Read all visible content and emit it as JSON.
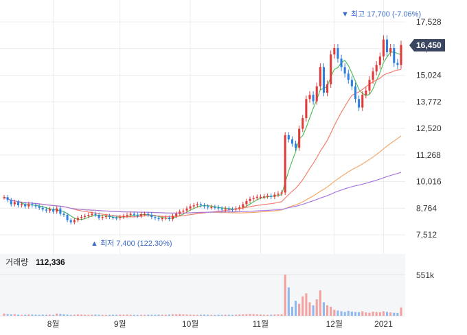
{
  "chart_data": {
    "type": "candlestick",
    "price_axis": {
      "ticks": [
        "17,528",
        "16,276",
        "15,024",
        "13,772",
        "12,520",
        "11,268",
        "10,016",
        "8,764",
        "7,512"
      ],
      "tick_values": [
        17528,
        16276,
        15024,
        13772,
        12520,
        11268,
        10016,
        8764,
        7512
      ]
    },
    "x_ticks": [
      "8월",
      "9월",
      "10월",
      "11월",
      "12월",
      "2021"
    ],
    "current_price": {
      "label": "16,450",
      "value": 16450
    },
    "high_annotation": "▼ 최고 17,700 (-7.06%)",
    "low_annotation": "▲ 최저 7,400 (122.30%)",
    "volume": {
      "label": "거래량",
      "value": "112,336",
      "axis_tick": "551k"
    },
    "colors": {
      "up": "#e03a3a",
      "down": "#2f7fe0",
      "ma5": "#4fbf5a",
      "ma20": "#f27f6f",
      "ma60": "#f5a96a",
      "ma120": "#a779e0",
      "vol_up": "#f2a0a0",
      "vol_down": "#8fb8ef",
      "price_tag": "#3a4660",
      "grid": "#ececec"
    },
    "closes": [
      9280,
      9150,
      8950,
      9050,
      8900,
      8950,
      8850,
      8950,
      8900,
      8850,
      8780,
      8700,
      8650,
      8720,
      8600,
      8750,
      8500,
      8450,
      8200,
      8100,
      8200,
      8300,
      8350,
      8400,
      8450,
      8500,
      8450,
      8300,
      8350,
      8400,
      8350,
      8320,
      8300,
      8350,
      8400,
      8450,
      8500,
      8450,
      8400,
      8480,
      8500,
      8450,
      8350,
      8300,
      8250,
      8300,
      8320,
      8250,
      8400,
      8500,
      8600,
      8650,
      8750,
      8850,
      8900,
      8950,
      8900,
      8850,
      8800,
      8820,
      8800,
      8750,
      8700,
      8750,
      8720,
      8700,
      8750,
      8800,
      8950,
      9100,
      9200,
      9250,
      9300,
      9300,
      9320,
      9350,
      9300,
      9400,
      9450,
      9500,
      12200,
      12000,
      11800,
      11600,
      12500,
      13000,
      13900,
      14100,
      13800,
      14500,
      15400,
      14200,
      14600,
      16000,
      16300,
      15800,
      15400,
      15100,
      14800,
      14500,
      13900,
      13500,
      14100,
      14300,
      14800,
      15200,
      15500,
      15900,
      16700,
      16100,
      16300,
      15600,
      15500,
      16450
    ],
    "volumes": [
      30,
      22,
      18,
      20,
      15,
      12,
      14,
      18,
      16,
      14,
      12,
      15,
      13,
      16,
      12,
      30,
      25,
      20,
      15,
      12,
      14,
      18,
      16,
      13,
      12,
      14,
      15,
      13,
      12,
      11,
      12,
      14,
      13,
      15,
      14,
      16,
      13,
      12,
      11,
      13,
      12,
      14,
      13,
      12,
      15,
      14,
      13,
      16,
      18,
      20,
      22,
      18,
      16,
      14,
      13,
      12,
      14,
      15,
      13,
      12,
      11,
      13,
      12,
      14,
      13,
      12,
      14,
      16,
      18,
      20,
      22,
      20,
      18,
      16,
      14,
      13,
      14,
      16,
      18,
      20,
      551,
      380,
      120,
      200,
      160,
      260,
      300,
      180,
      140,
      220,
      340,
      180,
      140,
      120,
      80,
      70,
      60,
      50,
      65,
      55,
      50,
      48,
      60,
      45,
      40,
      55,
      50,
      48,
      60,
      52,
      45,
      40,
      38,
      112
    ]
  }
}
